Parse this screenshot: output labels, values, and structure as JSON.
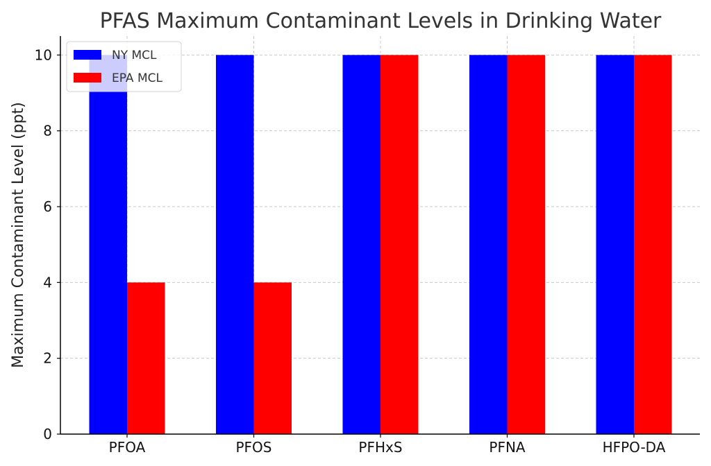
{
  "chart_data": {
    "type": "bar",
    "title": "PFAS Maximum Contaminant Levels in Drinking Water",
    "xlabel": "",
    "ylabel": "Maximum Contaminant Level (ppt)",
    "categories": [
      "PFOA",
      "PFOS",
      "PFHxS",
      "PFNA",
      "HFPO-DA"
    ],
    "series": [
      {
        "name": "NY MCL",
        "color": "#0000ff",
        "values": [
          10,
          10,
          10,
          10,
          10
        ]
      },
      {
        "name": "EPA MCL",
        "color": "#ff0000",
        "values": [
          4,
          4,
          10,
          10,
          10
        ]
      }
    ],
    "ylim": [
      0,
      10.5
    ],
    "yticks": [
      0,
      2,
      4,
      6,
      8,
      10
    ],
    "grid": true,
    "legend_position": "top-left"
  }
}
